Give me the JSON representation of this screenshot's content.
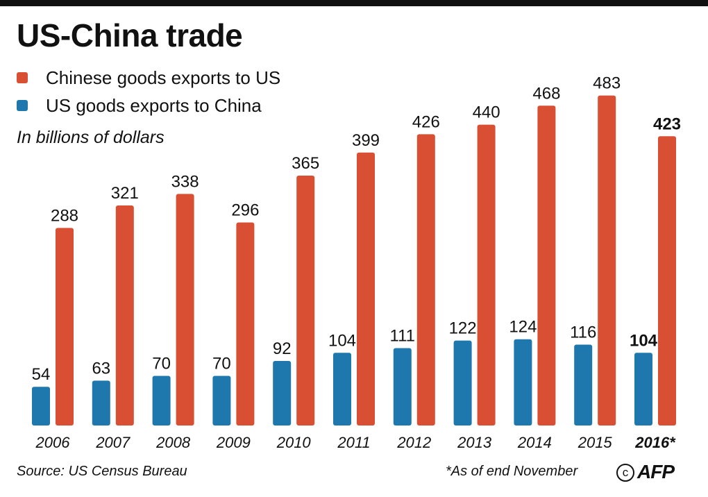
{
  "title": "US-China trade",
  "subtitle": "In billions of dollars",
  "legend": [
    {
      "label": "Chinese goods exports to US",
      "color": "#d94f33"
    },
    {
      "label": "US goods exports to China",
      "color": "#1f78ad"
    }
  ],
  "footer": {
    "source": "Source: US Census Bureau",
    "note": "*As of end November",
    "logo": "AFP"
  },
  "chart_data": {
    "type": "bar",
    "title": "US-China trade",
    "ylabel": "In billions of dollars",
    "xlabel": "",
    "categories": [
      "2006",
      "2007",
      "2008",
      "2009",
      "2010",
      "2011",
      "2012",
      "2013",
      "2014",
      "2015",
      "2016*"
    ],
    "series": [
      {
        "name": "US goods exports to China",
        "color": "#1f78ad",
        "values": [
          54,
          63,
          70,
          70,
          92,
          104,
          111,
          122,
          124,
          116,
          104
        ]
      },
      {
        "name": "Chinese goods exports to US",
        "color": "#d94f33",
        "values": [
          288,
          321,
          338,
          296,
          365,
          399,
          426,
          440,
          468,
          483,
          423
        ]
      }
    ],
    "highlight_category": "2016*",
    "ylim": [
      0,
      500
    ],
    "grid": false,
    "legend_position": "top-left"
  }
}
